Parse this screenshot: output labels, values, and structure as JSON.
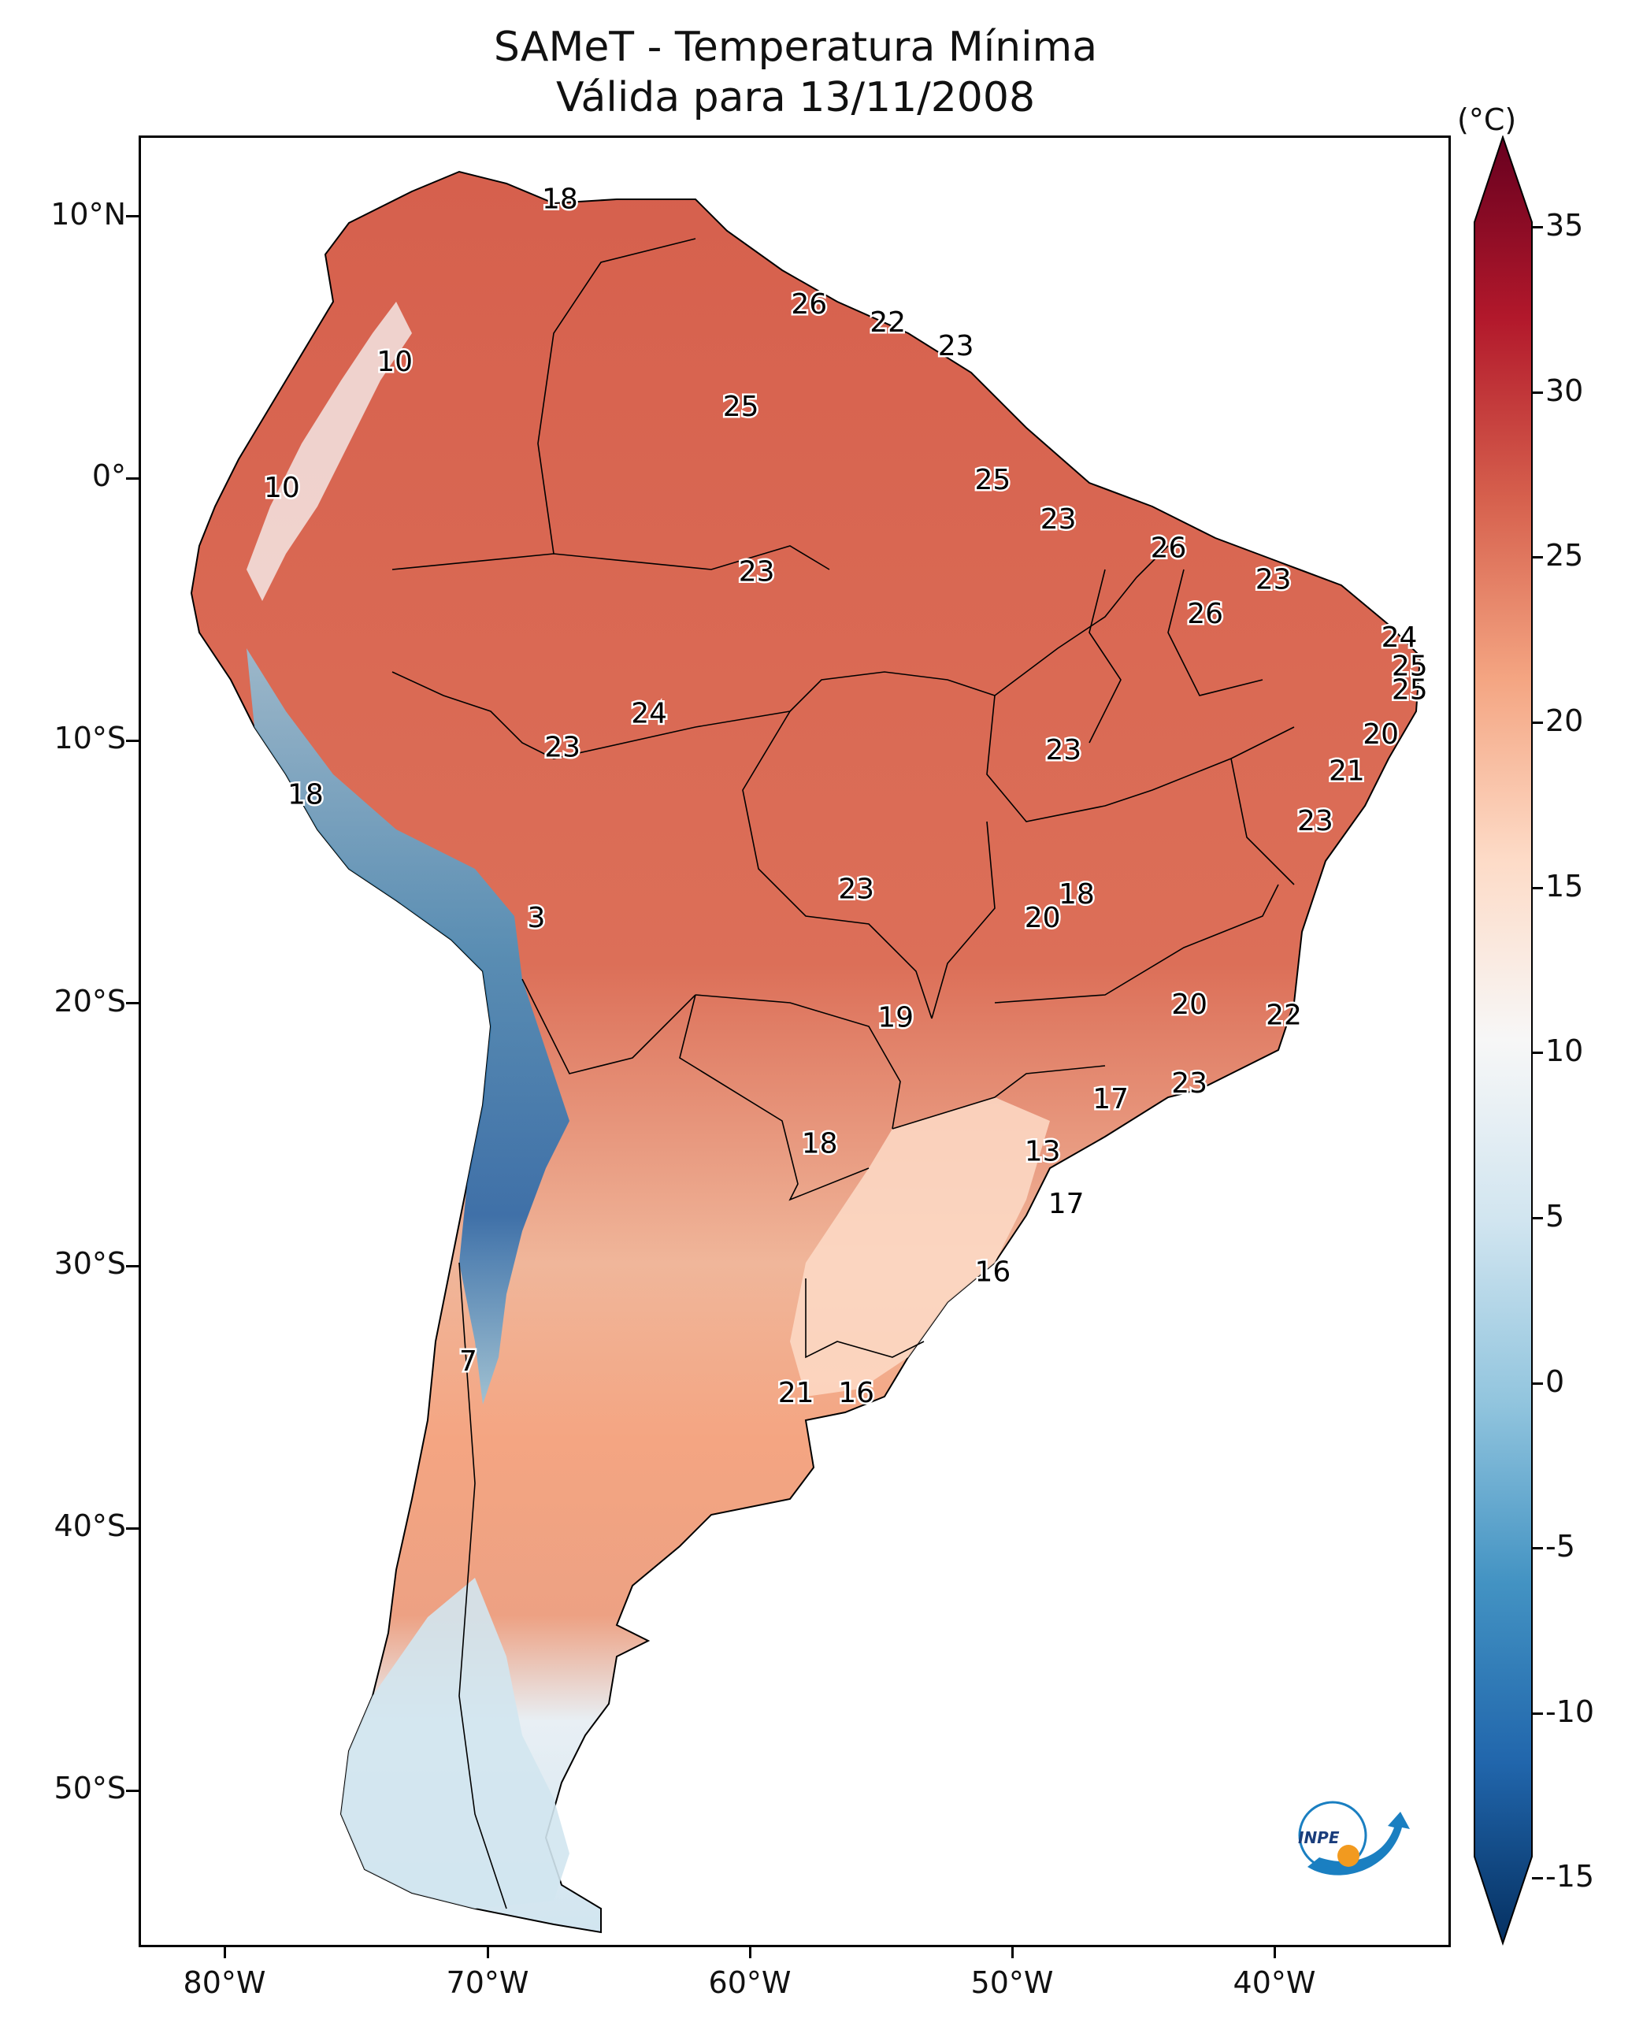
{
  "title": {
    "line1": "SAMeT - Temperatura Mínima",
    "line2": "Válida para 13/11/2008"
  },
  "axes": {
    "lat_ticks": [
      "10°N",
      "0°",
      "10°S",
      "20°S",
      "30°S",
      "40°S",
      "50°S"
    ],
    "lon_ticks": [
      "80°W",
      "70°W",
      "60°W",
      "50°W",
      "40°W"
    ]
  },
  "colorbar": {
    "unit": "(°C)",
    "ticks": [
      "35",
      "30",
      "25",
      "20",
      "15",
      "10",
      "5",
      "0",
      "-5",
      "-10",
      "-15"
    ],
    "colors": [
      "#67001f",
      "#b2182b",
      "#d6604d",
      "#f4a582",
      "#fddbc7",
      "#f7f7f7",
      "#d1e5f0",
      "#92c5de",
      "#4393c3",
      "#2166ac",
      "#053061"
    ]
  },
  "map_labels": [
    {
      "text": "18",
      "lon": -67.3,
      "lat": 10.7
    },
    {
      "text": "26",
      "lon": -57.8,
      "lat": 6.7
    },
    {
      "text": "22",
      "lon": -54.8,
      "lat": 6.0
    },
    {
      "text": "23",
      "lon": -52.2,
      "lat": 5.1
    },
    {
      "text": "10",
      "lon": -73.6,
      "lat": 4.5
    },
    {
      "text": "25",
      "lon": -60.4,
      "lat": 2.8
    },
    {
      "text": "10",
      "lon": -77.9,
      "lat": -0.3
    },
    {
      "text": "25",
      "lon": -50.8,
      "lat": 0.0
    },
    {
      "text": "23",
      "lon": -48.3,
      "lat": -1.5
    },
    {
      "text": "26",
      "lon": -44.1,
      "lat": -2.6
    },
    {
      "text": "23",
      "lon": -40.1,
      "lat": -3.8
    },
    {
      "text": "23",
      "lon": -59.8,
      "lat": -3.5
    },
    {
      "text": "26",
      "lon": -42.7,
      "lat": -5.1
    },
    {
      "text": "24",
      "lon": -35.3,
      "lat": -6.0
    },
    {
      "text": "25",
      "lon": -34.9,
      "lat": -7.1
    },
    {
      "text": "25",
      "lon": -34.9,
      "lat": -8.0
    },
    {
      "text": "24",
      "lon": -63.9,
      "lat": -8.9
    },
    {
      "text": "20",
      "lon": -36.0,
      "lat": -9.7
    },
    {
      "text": "23",
      "lon": -67.2,
      "lat": -10.2
    },
    {
      "text": "23",
      "lon": -48.1,
      "lat": -10.3
    },
    {
      "text": "21",
      "lon": -37.3,
      "lat": -11.1
    },
    {
      "text": "18",
      "lon": -77.0,
      "lat": -12.0
    },
    {
      "text": "23",
      "lon": -38.5,
      "lat": -13.0
    },
    {
      "text": "23",
      "lon": -56.0,
      "lat": -15.6
    },
    {
      "text": "18",
      "lon": -47.6,
      "lat": -15.8
    },
    {
      "text": "20",
      "lon": -48.9,
      "lat": -16.7
    },
    {
      "text": "3",
      "lon": -68.2,
      "lat": -16.7
    },
    {
      "text": "20",
      "lon": -43.3,
      "lat": -20.0
    },
    {
      "text": "22",
      "lon": -39.7,
      "lat": -20.4
    },
    {
      "text": "19",
      "lon": -54.5,
      "lat": -20.5
    },
    {
      "text": "23",
      "lon": -43.3,
      "lat": -23.0
    },
    {
      "text": "17",
      "lon": -46.3,
      "lat": -23.6
    },
    {
      "text": "18",
      "lon": -57.4,
      "lat": -25.3
    },
    {
      "text": "13",
      "lon": -48.9,
      "lat": -25.6
    },
    {
      "text": "17",
      "lon": -48.0,
      "lat": -27.6
    },
    {
      "text": "16",
      "lon": -50.8,
      "lat": -30.2
    },
    {
      "text": "7",
      "lon": -70.8,
      "lat": -33.6
    },
    {
      "text": "21",
      "lon": -58.3,
      "lat": -34.8
    },
    {
      "text": "16",
      "lon": -56.0,
      "lat": -34.8
    }
  ],
  "logo": {
    "text": "INPE"
  }
}
